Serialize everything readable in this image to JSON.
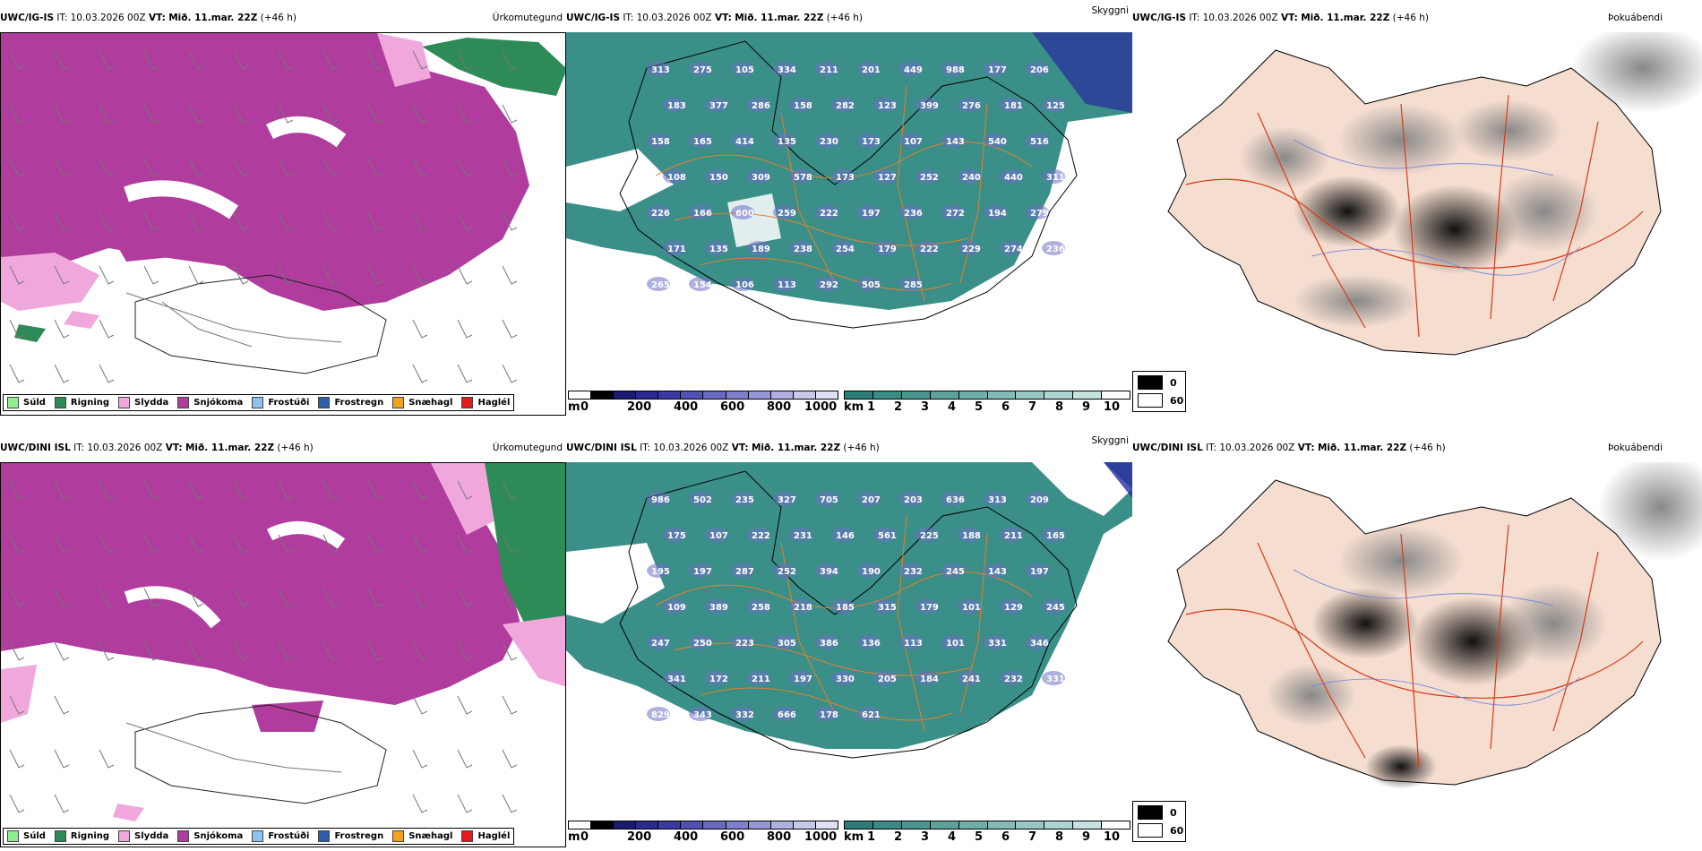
{
  "rows": [
    {
      "model": "UWC/IG-IS",
      "it": "IT: 10.03.2026 00Z",
      "vt_prefix": "VT:",
      "vt": "Mið. 11.mar. 22Z",
      "lead": "(+46 h)",
      "precip_title": "Úrkomutegund",
      "cloud_title": "Skyggni",
      "fog_title": "Þokuábendi",
      "cloud_labels": [
        "313",
        "275",
        "105",
        "334",
        "211",
        "201",
        "449",
        "988",
        "177",
        "206",
        "183",
        "377",
        "286",
        "158",
        "282",
        "123",
        "399",
        "276",
        "181",
        "125",
        "158",
        "165",
        "414",
        "135",
        "230",
        "173",
        "107",
        "143",
        "540",
        "516",
        "108",
        "150",
        "309",
        "578",
        "173",
        "127",
        "252",
        "240",
        "440",
        "311",
        "226",
        "166",
        "600",
        "259",
        "222",
        "197",
        "236",
        "272",
        "194",
        "279",
        "171",
        "135",
        "189",
        "238",
        "254",
        "179",
        "222",
        "229",
        "274",
        "236",
        "265",
        "154",
        "106",
        "113",
        "292",
        "505",
        "285"
      ]
    },
    {
      "model": "UWC/DINI ISL",
      "it": "IT: 10.03.2026 00Z",
      "vt_prefix": "VT:",
      "vt": "Mið. 11.mar. 22Z",
      "lead": "(+46 h)",
      "precip_title": "Úrkomutegund",
      "cloud_title": "Skyggni",
      "fog_title": "Þokuábendi",
      "cloud_labels": [
        "986",
        "502",
        "235",
        "327",
        "705",
        "207",
        "203",
        "636",
        "313",
        "209",
        "175",
        "107",
        "222",
        "231",
        "146",
        "561",
        "225",
        "188",
        "211",
        "165",
        "195",
        "197",
        "287",
        "252",
        "394",
        "190",
        "232",
        "245",
        "143",
        "197",
        "109",
        "389",
        "258",
        "218",
        "185",
        "315",
        "179",
        "101",
        "129",
        "245",
        "247",
        "250",
        "223",
        "305",
        "386",
        "136",
        "113",
        "101",
        "331",
        "346",
        "341",
        "172",
        "211",
        "197",
        "330",
        "205",
        "184",
        "241",
        "232",
        "331",
        "829",
        "343",
        "332",
        "666",
        "178",
        "621"
      ]
    }
  ],
  "precip_legend": [
    {
      "label": "Súld",
      "color": "#90ee90"
    },
    {
      "label": "Rigning",
      "color": "#2e8b57"
    },
    {
      "label": "Slydda",
      "color": "#f0a8dc"
    },
    {
      "label": "Snjókoma",
      "color": "#b03c9e"
    },
    {
      "label": "Frostúði",
      "color": "#8ec2ee"
    },
    {
      "label": "Frostregn",
      "color": "#2c5fa8"
    },
    {
      "label": "Snæhagl",
      "color": "#f2a21e"
    },
    {
      "label": "Haglél",
      "color": "#e41a1c"
    }
  ],
  "cloudbase_bar": {
    "unit": "m",
    "ticks": [
      "0",
      "200",
      "400",
      "600",
      "800",
      "1000"
    ],
    "colors": [
      "#ffffff",
      "#000000",
      "#1a1a70",
      "#2a2a90",
      "#3a3aa5",
      "#5050b5",
      "#6868c0",
      "#7e7ecc",
      "#9696d6",
      "#b0b0e0",
      "#c8c8ea",
      "#e0e0f4"
    ]
  },
  "visibility_bar": {
    "unit": "km",
    "ticks": [
      "1",
      "2",
      "3",
      "4",
      "5",
      "6",
      "7",
      "8",
      "9",
      "10"
    ],
    "colors": [
      "#2c7d78",
      "#3a8a85",
      "#4a9590",
      "#5da29d",
      "#70aea9",
      "#84bab6",
      "#98c7c3",
      "#add4d0",
      "#c3e1de",
      "#ffffff"
    ]
  },
  "fog_legend": {
    "black": "0",
    "white": "60"
  },
  "colors": {
    "snow": "#b03c9e",
    "sleet": "#f0a8dc",
    "rain": "#2e8b57",
    "drizzle": "#90ee90",
    "teal": "#3a8f88",
    "contour": "#e8802a",
    "road": "#d83a1a",
    "fogbg": "#f5ddd0"
  }
}
